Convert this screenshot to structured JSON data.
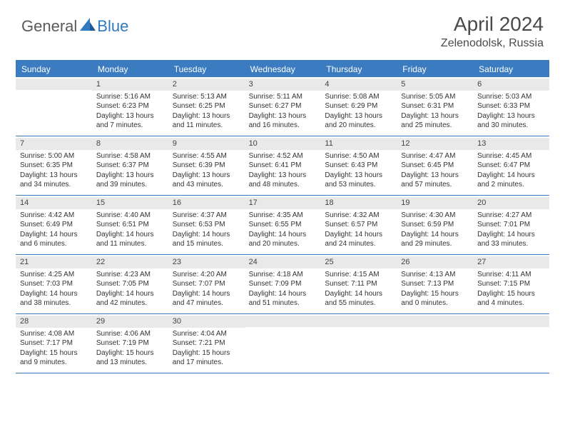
{
  "brand": {
    "text1": "General",
    "text2": "Blue"
  },
  "title": "April 2024",
  "location": "Zelenodolsk, Russia",
  "colors": {
    "accent": "#3b7bbf",
    "header_bg": "#3b7bbf",
    "numrow_bg": "#e9e9e9",
    "text": "#333333",
    "brand_gray": "#5b5b5b",
    "brand_blue": "#2f7ac0"
  },
  "day_headers": [
    "Sunday",
    "Monday",
    "Tuesday",
    "Wednesday",
    "Thursday",
    "Friday",
    "Saturday"
  ],
  "weeks": [
    [
      null,
      {
        "n": "1",
        "sr": "Sunrise: 5:16 AM",
        "ss": "Sunset: 6:23 PM",
        "dl": "Daylight: 13 hours and 7 minutes."
      },
      {
        "n": "2",
        "sr": "Sunrise: 5:13 AM",
        "ss": "Sunset: 6:25 PM",
        "dl": "Daylight: 13 hours and 11 minutes."
      },
      {
        "n": "3",
        "sr": "Sunrise: 5:11 AM",
        "ss": "Sunset: 6:27 PM",
        "dl": "Daylight: 13 hours and 16 minutes."
      },
      {
        "n": "4",
        "sr": "Sunrise: 5:08 AM",
        "ss": "Sunset: 6:29 PM",
        "dl": "Daylight: 13 hours and 20 minutes."
      },
      {
        "n": "5",
        "sr": "Sunrise: 5:05 AM",
        "ss": "Sunset: 6:31 PM",
        "dl": "Daylight: 13 hours and 25 minutes."
      },
      {
        "n": "6",
        "sr": "Sunrise: 5:03 AM",
        "ss": "Sunset: 6:33 PM",
        "dl": "Daylight: 13 hours and 30 minutes."
      }
    ],
    [
      {
        "n": "7",
        "sr": "Sunrise: 5:00 AM",
        "ss": "Sunset: 6:35 PM",
        "dl": "Daylight: 13 hours and 34 minutes."
      },
      {
        "n": "8",
        "sr": "Sunrise: 4:58 AM",
        "ss": "Sunset: 6:37 PM",
        "dl": "Daylight: 13 hours and 39 minutes."
      },
      {
        "n": "9",
        "sr": "Sunrise: 4:55 AM",
        "ss": "Sunset: 6:39 PM",
        "dl": "Daylight: 13 hours and 43 minutes."
      },
      {
        "n": "10",
        "sr": "Sunrise: 4:52 AM",
        "ss": "Sunset: 6:41 PM",
        "dl": "Daylight: 13 hours and 48 minutes."
      },
      {
        "n": "11",
        "sr": "Sunrise: 4:50 AM",
        "ss": "Sunset: 6:43 PM",
        "dl": "Daylight: 13 hours and 53 minutes."
      },
      {
        "n": "12",
        "sr": "Sunrise: 4:47 AM",
        "ss": "Sunset: 6:45 PM",
        "dl": "Daylight: 13 hours and 57 minutes."
      },
      {
        "n": "13",
        "sr": "Sunrise: 4:45 AM",
        "ss": "Sunset: 6:47 PM",
        "dl": "Daylight: 14 hours and 2 minutes."
      }
    ],
    [
      {
        "n": "14",
        "sr": "Sunrise: 4:42 AM",
        "ss": "Sunset: 6:49 PM",
        "dl": "Daylight: 14 hours and 6 minutes."
      },
      {
        "n": "15",
        "sr": "Sunrise: 4:40 AM",
        "ss": "Sunset: 6:51 PM",
        "dl": "Daylight: 14 hours and 11 minutes."
      },
      {
        "n": "16",
        "sr": "Sunrise: 4:37 AM",
        "ss": "Sunset: 6:53 PM",
        "dl": "Daylight: 14 hours and 15 minutes."
      },
      {
        "n": "17",
        "sr": "Sunrise: 4:35 AM",
        "ss": "Sunset: 6:55 PM",
        "dl": "Daylight: 14 hours and 20 minutes."
      },
      {
        "n": "18",
        "sr": "Sunrise: 4:32 AM",
        "ss": "Sunset: 6:57 PM",
        "dl": "Daylight: 14 hours and 24 minutes."
      },
      {
        "n": "19",
        "sr": "Sunrise: 4:30 AM",
        "ss": "Sunset: 6:59 PM",
        "dl": "Daylight: 14 hours and 29 minutes."
      },
      {
        "n": "20",
        "sr": "Sunrise: 4:27 AM",
        "ss": "Sunset: 7:01 PM",
        "dl": "Daylight: 14 hours and 33 minutes."
      }
    ],
    [
      {
        "n": "21",
        "sr": "Sunrise: 4:25 AM",
        "ss": "Sunset: 7:03 PM",
        "dl": "Daylight: 14 hours and 38 minutes."
      },
      {
        "n": "22",
        "sr": "Sunrise: 4:23 AM",
        "ss": "Sunset: 7:05 PM",
        "dl": "Daylight: 14 hours and 42 minutes."
      },
      {
        "n": "23",
        "sr": "Sunrise: 4:20 AM",
        "ss": "Sunset: 7:07 PM",
        "dl": "Daylight: 14 hours and 47 minutes."
      },
      {
        "n": "24",
        "sr": "Sunrise: 4:18 AM",
        "ss": "Sunset: 7:09 PM",
        "dl": "Daylight: 14 hours and 51 minutes."
      },
      {
        "n": "25",
        "sr": "Sunrise: 4:15 AM",
        "ss": "Sunset: 7:11 PM",
        "dl": "Daylight: 14 hours and 55 minutes."
      },
      {
        "n": "26",
        "sr": "Sunrise: 4:13 AM",
        "ss": "Sunset: 7:13 PM",
        "dl": "Daylight: 15 hours and 0 minutes."
      },
      {
        "n": "27",
        "sr": "Sunrise: 4:11 AM",
        "ss": "Sunset: 7:15 PM",
        "dl": "Daylight: 15 hours and 4 minutes."
      }
    ],
    [
      {
        "n": "28",
        "sr": "Sunrise: 4:08 AM",
        "ss": "Sunset: 7:17 PM",
        "dl": "Daylight: 15 hours and 9 minutes."
      },
      {
        "n": "29",
        "sr": "Sunrise: 4:06 AM",
        "ss": "Sunset: 7:19 PM",
        "dl": "Daylight: 15 hours and 13 minutes."
      },
      {
        "n": "30",
        "sr": "Sunrise: 4:04 AM",
        "ss": "Sunset: 7:21 PM",
        "dl": "Daylight: 15 hours and 17 minutes."
      },
      null,
      null,
      null,
      null
    ]
  ]
}
